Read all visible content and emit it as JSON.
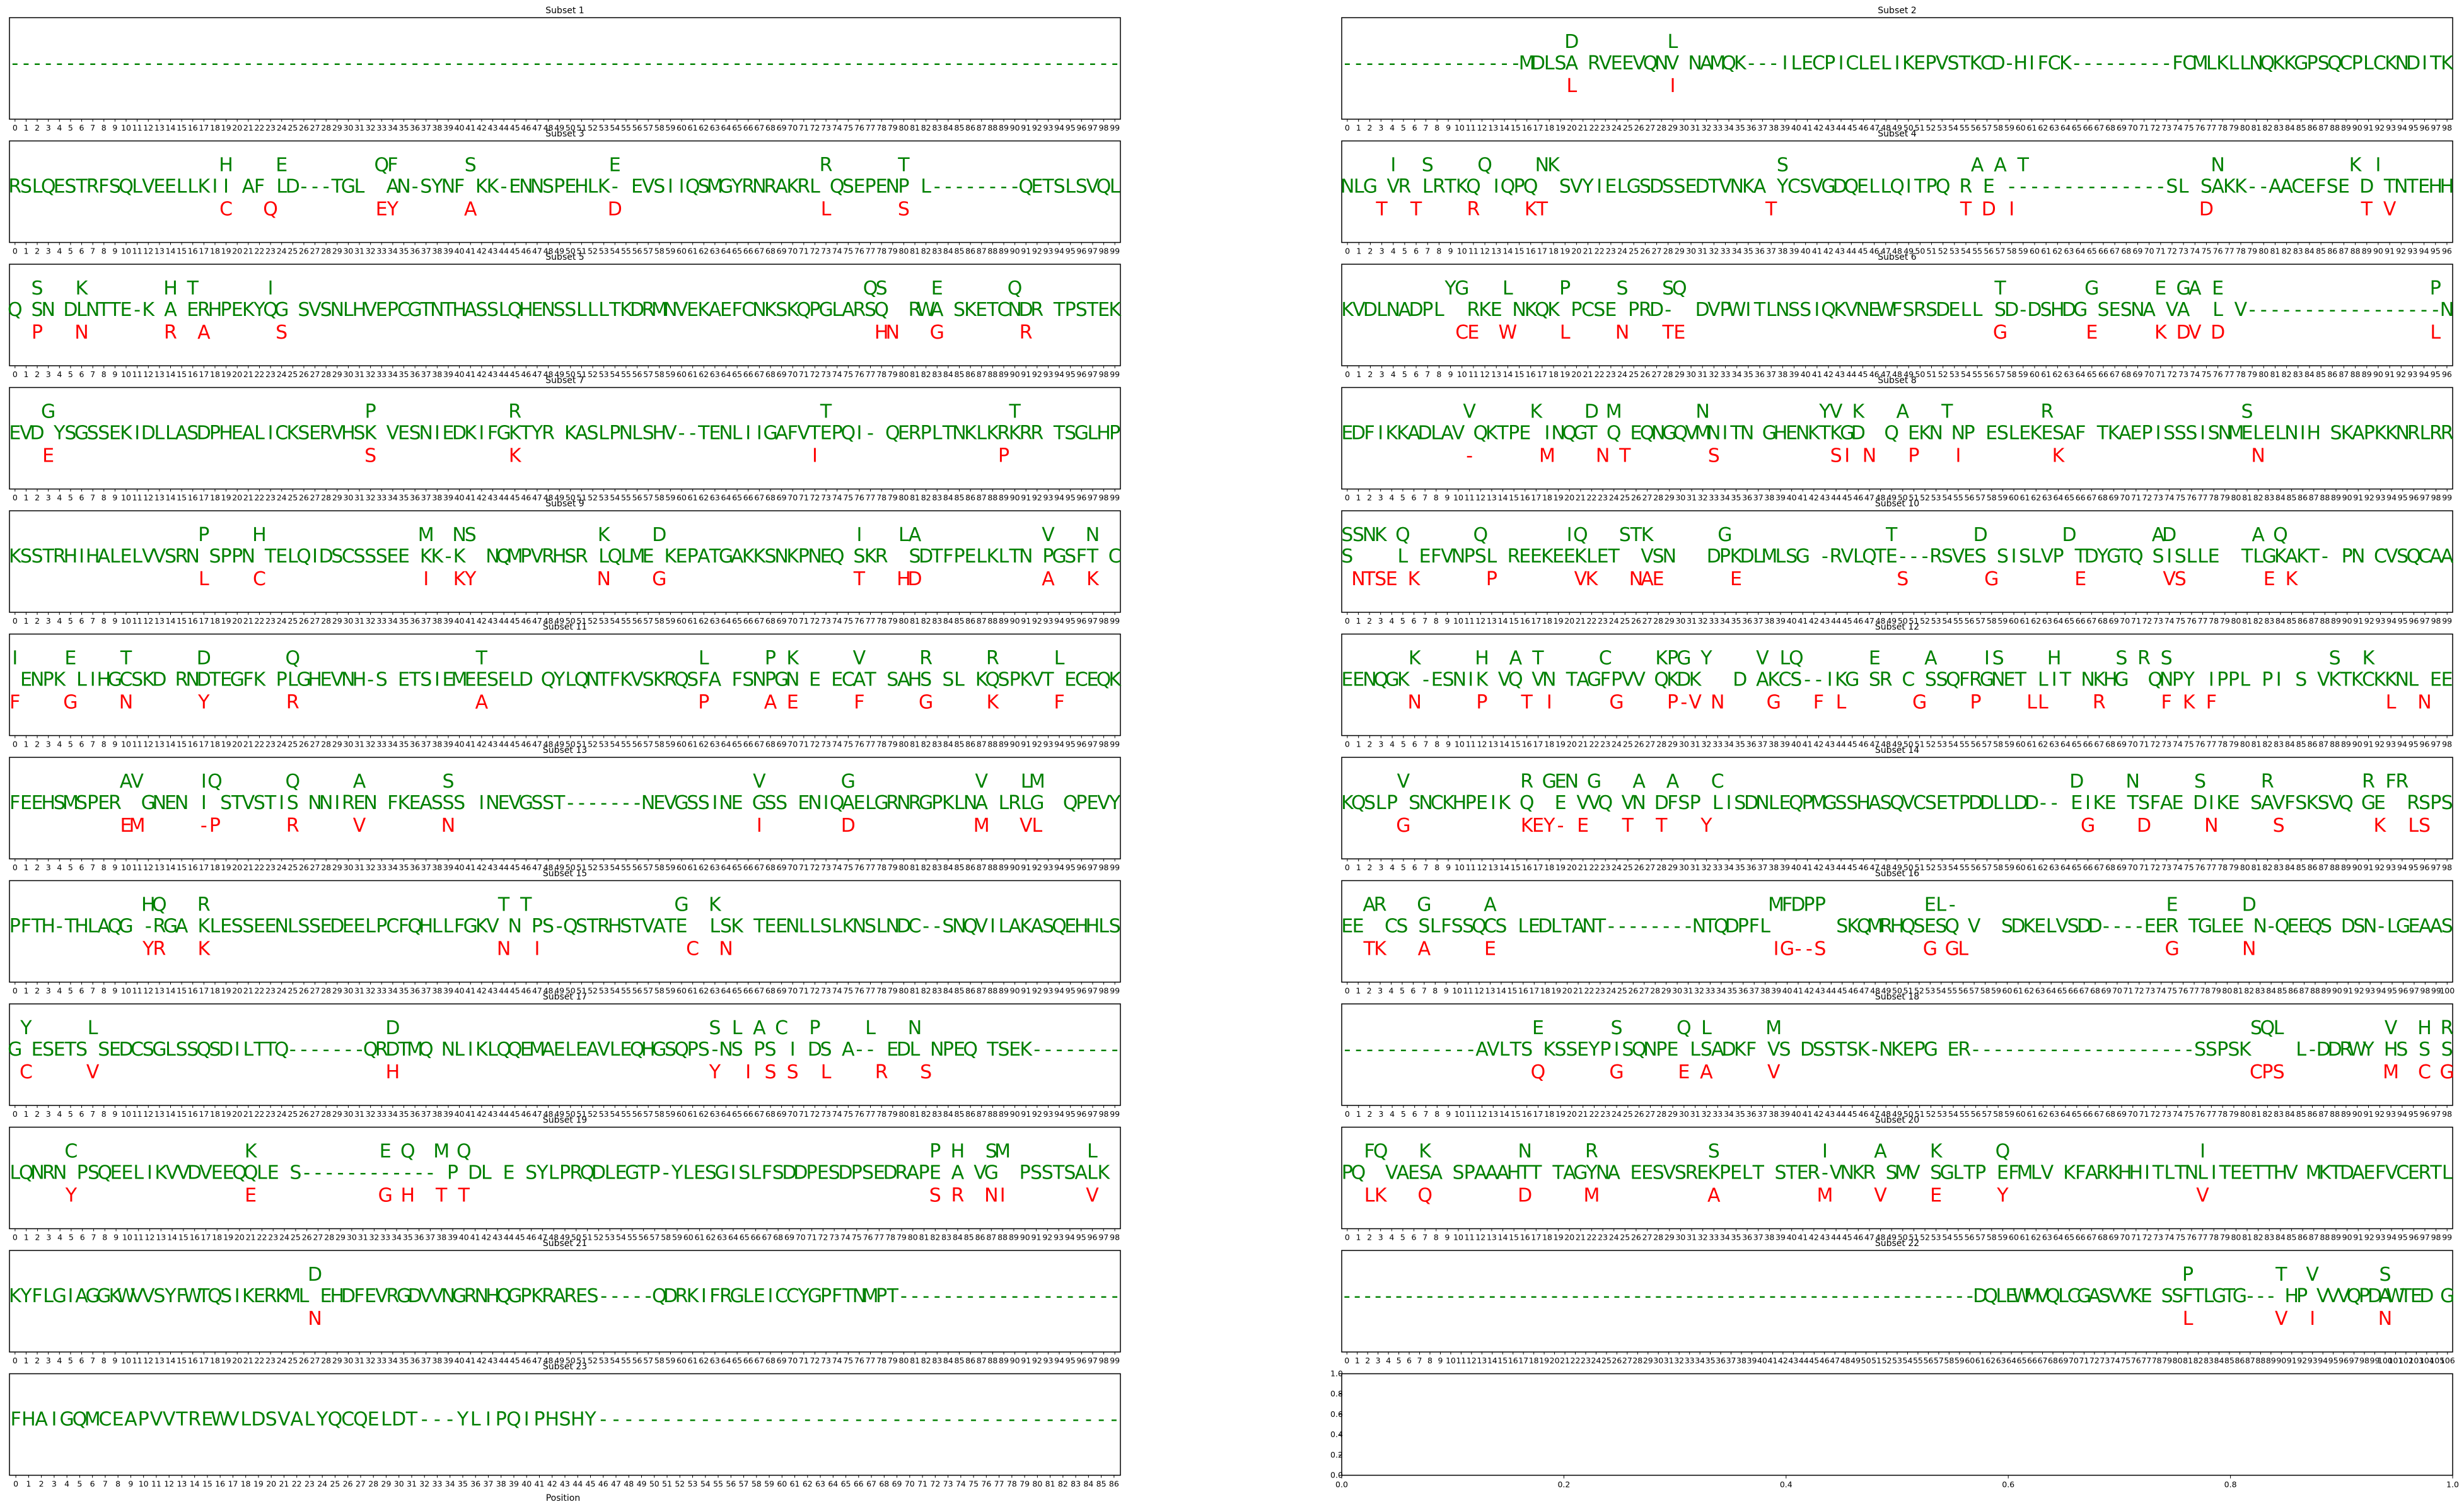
{
  "figure": {
    "xlabel": "Position"
  },
  "colors": {
    "sequence": "#008000",
    "mutation": "#ff0000",
    "axes": "#000000",
    "background": "#ffffff"
  },
  "chart_data": [
    {
      "id": 1,
      "title": "Subset 1",
      "type": "table",
      "seq": "----------------------------------------------------------------------------------------------------",
      "upper": "",
      "lower": ""
    },
    {
      "id": 2,
      "title": "Subset 2",
      "type": "table",
      "seq": "----------------MDLSA RVEEVQNV NAMQK---ILECPICLELIKEPVSTKCD-HIFCK---------FCMLKLLNQKKGPSQCPLCKNDITK",
      "upper": "                    D        L                                                                     ",
      "lower": "                    L        I                                                                     "
    },
    {
      "id": 3,
      "title": "Subset 3",
      "type": "table",
      "seq": "RSLQESTRFSQLVEELLKII AF LD---TGL  AN-SYNF KK-ENNSPEHLK- EVSIIQSMGYRNRAKRL QSEPENP L--------QETSLSVQL",
      "upper": "                   H    E        QF      S            E                  R      T                   ",
      "lower": "                   C   Q         EY      A            D                  L      S                   "
    },
    {
      "id": 4,
      "title": "Subset 4",
      "type": "table",
      "seq": "NLG VR LRTKQ IQPQ  SVYIELGSDSSEDTVNKA YCSVGDQELLQITPQ R E --------------SL SAKK--AACEFSE D TNTEHH",
      "upper": "    I  S    Q    NK                   S                A A T                N           K I       ",
      "lower": "   T  T    R    KT                   T                T D I                D             T V      "
    },
    {
      "id": 5,
      "title": "Subset 5",
      "type": "table",
      "seq": "Q SN DLNTTE-K A ERHPEKYQG SVSNLHVEPCGTNTHASSLQHENSSLLLTKDRMNVEKAEFCNKSKQPGLARSQ  RWA SKETCNDR TPSTEK",
      "upper": "  S   K       H T      I                                                     QS    E      Q       ",
      "lower": "  P   N       R  A      S                                                     HN   G       R        "
    },
    {
      "id": 6,
      "title": "Subset 6",
      "type": "table",
      "seq": "KVDLNADPL  RKE NKQK PCSE PRD-  DVPWITLNSSIQKVNEWFSRSDELL SD-DSHDG SESNA VA  L V-----------------N",
      "upper": "         YG   L    P    S   SQ                           T       G     E GA E                  P",
      "lower": "          CE  W    L    N   TE                           G       E     K DV D                  L"
    },
    {
      "id": 7,
      "title": "Subset 7",
      "type": "table",
      "seq": "EVD YSGSSEKIDLLASDPHEALICKSERVHSK VESNIEDKIFGKTYR KASLPNLSHV--TENLIIGAFVTEPQI- QERPLTNKLKRKRR TSGLHP",
      "upper": "   G                            P            R                           T                T     ",
      "lower": "   E                            S            K                          I                P      "
    },
    {
      "id": 8,
      "title": "Subset 8",
      "type": "table",
      "seq": "EDFIKKADLAV QKTPE INQGT Q EQNGQVMNITN GHENKTKGD  Q EKN NP ESLEKESAF TKAEPISSSISNMELELNIH SKAPKKNRLRR",
      "upper": "           V     K    D M       N          YV K   A   T        R                 S               ",
      "lower": "           -      M    N T       S          SI N   P   I        K                 N               "
    },
    {
      "id": 9,
      "title": "Subset 9",
      "type": "table",
      "seq": "KSSTRHIHALELVVSRN SPPN TELQIDSCSSSEE KK-K  NQMPVRHSR LQLME KEPATGAKKSNKPNEQ SKR  SDTFPELKLTN PGSFT C",
      "upper": "                 P    H              M  NS           K    D                 I   LA           V   N",
      "lower": "                 L    C              I  KY           N    G                 T   HD           A   K"
    },
    {
      "id": 10,
      "title": "Subset 10",
      "type": "table",
      "seq": "S    L EFVNPSL REEKEEKLET  VSN   DPKDLMLSG -RVLQTE---RSVES SISLVP TDYGTQ SISLLE  TLGKAKT- PN CVSQCAA",
      "upper": "SSNK Q      Q       IQ   STK      G              T       D       D       AD       A Q           ",
      "lower": " NTSE K      P       VK   NAE      E              S       G       E       VS       E K           "
    },
    {
      "id": 11,
      "title": "Subset 11",
      "type": "table",
      "seq": " ENPK LIHGCSKD RNDTEGFK PLGHEVNH-S ETSIEMEESELD QYLQNTFKVSKRQSFA FSNPGN E ECAT SAHS SL KQSPKVT ECEQK",
      "upper": "I    E    T      D       Q                T                   L     P K     V     R     R     L    ",
      "lower": "F    G    N      Y       R                A                   P     A E     F     G     K     F    "
    },
    {
      "id": 12,
      "title": "Subset 12",
      "type": "table",
      "seq": "EENQGK -ESNIK VQ VN TAGFPVV QKDK   D AKCS--IKG SR C SSQFRGNET LIT NKHG  QNPY IPPL PI S VKTKCKKNL EE",
      "upper": "      K     H  A T     C    KPG Y    V LQ      E    A    IS    H     S R S              S  K      ",
      "lower": "      N     P   T I     G    P-V N    G   F L      G    P    LL    R     F K F               L  N  "
    },
    {
      "id": 13,
      "title": "Subset 13",
      "type": "table",
      "seq": "FEEHSMSPER  GNEN I STVSTIS NNIREN FKEASSS INEVGSST-------NEVGSSINE GSS ENIQAELGRNRGPKLNA LRLG  QPEVY",
      "upper": "          AV     IQ      Q     A       S                           V       G           V   LM     ",
      "lower": "          EM     -P      R     V       N                           I       D           M   VL     "
    },
    {
      "id": 14,
      "title": "Subset 14",
      "type": "table",
      "seq": "KQSLP SNCKHPEIK Q  E VVQ VN DFSP LISDNLEQPMGSSHASQVCSETPDDLLDD-- EIKE TSFAE DIKE SAVFSKSVQ GE  RSPS",
      "upper": "     V          R GEN G   A  A   C                               D    N     S     R        R FR    ",
      "lower": "     G          KEY- E   T  T   Y                                 G    D     N     S        K  LS  "
    },
    {
      "id": 15,
      "title": "Subset 15",
      "type": "table",
      "seq": "PFTH-THLAQG -RGA KLESSEENLSSEDEELPCFQHLLFGKV N PS-QSTRHSTVATE  LSK TEENLLSLKNSLNDC--SNQVILAKASQEHHLS",
      "upper": "            HQ   R                          T T             G  K                                ",
      "lower": "            YR   K                          N  I             C  N                                "
    },
    {
      "id": 16,
      "title": "Subset 16",
      "type": "table",
      "seq": "EE  CS SLFSSQCS LEDLTANT--------NTQDPFL      SKQMRHQSESQ V  SDKELVSDD----EER TGLEE N-QEEQS DSN-LGEAAS",
      "upper": "  AR   G     A                         MFDPP         EL-                   E      D              ",
      "lower": "  TK   A     E                         IG--S         G GL                  G      N              "
    },
    {
      "id": 17,
      "title": "Subset 17",
      "type": "table",
      "seq": "G ESETS SEDCSGLSSQSDILTTQ-------QRDTMQ NLIKLQQEMAELEAVLEQHGSQPS-NS PS I DS A-- EDL NPEQ TSEK--------",
      "upper": " Y     L                          D                            S L A C  P    L   N              ",
      "lower": " C     V                          H                            Y  I S S  L    R   S              "
    },
    {
      "id": 18,
      "title": "Subset 18",
      "type": "table",
      "seq": "------------AVLTS KSSEYPISQNPE LSADKF VS DSSTSK-NKEPG ER--------------------SSPSK    L-DDRWY HS S S",
      "upper": "                 E      S     Q L     M                                          SQL         V  H R   ",
      "lower": "                 Q      G     E A     V                                          CPS         M  C G   "
    },
    {
      "id": 19,
      "title": "Subset 19",
      "type": "table",
      "seq": "LQNRN PSQEELIKVVDVEEQQLE S------------ P DL E SYLPRQDLEGTP-YLESGISLFSDDPESDPSEDRAPE A VG  PSSTSALK ",
      "upper": "     C               K           E Q  M Q                                         P H  SM       L ",
      "lower": "     Y               E           G H  T T                                         S R  NI       V "
    },
    {
      "id": 20,
      "title": "Subset 20",
      "type": "table",
      "seq": "PQ  VAESA SPAAAHTT TAGYNA EESVSREKPELT STER-VNKR SMV SGLTP EFMLV KFARKHHITLTNLITEETTHV MKTDAEFVCERTL",
      "upper": "  FQ   K        N     R          S         I    A    K     Q                 I                     ",
      "lower": "  LK   Q        D     M          A         M    V    E     Y                 V                     "
    },
    {
      "id": 21,
      "title": "Subset 21",
      "type": "table",
      "seq": "KYFLGIAGGKWVVSYFWTQSIKERKML EHDFEVRGDVVNGRNHQGPKRARES-----QDRKIFRGLEICCYGPFTNMPT--------------------",
      "upper": "                           D                                                                        ",
      "lower": "                           N                                                                        "
    },
    {
      "id": 22,
      "title": "Subset 22",
      "type": "table",
      "seq": "-------------------------------------------------------------DQLEWMVQLCGASVVKE SSFTLGTG--- HP VVVQPDAWTED G",
      "upper": "                                                                                 P        T  V      S ",
      "lower": "                                                                                 L        V  I      N "
    },
    {
      "id": 23,
      "title": "Subset 23",
      "type": "table",
      "seq": "FHAIGQMCEAPVVTREWVLDSVALYQCQELDT---YLIPQIPHSHY-----------------------------------------",
      "upper": "",
      "lower": ""
    },
    {
      "id": 24,
      "title": "",
      "type": "empty",
      "xticks": [
        "0.0",
        "0.2",
        "0.4",
        "0.6",
        "0.8",
        "1.0"
      ],
      "yticks": [
        "0.0",
        "0.2",
        "0.4",
        "0.6",
        "0.8",
        "1.0"
      ]
    }
  ]
}
